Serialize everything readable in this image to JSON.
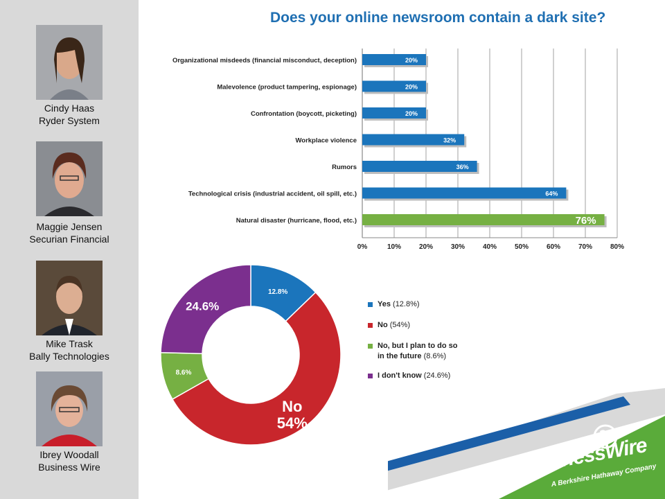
{
  "title": "Does your online newsroom contain a dark site?",
  "people": [
    {
      "name": "Cindy Haas",
      "org": "Ryder System"
    },
    {
      "name": "Maggie Jensen",
      "org": "Securian Financial"
    },
    {
      "name": "Mike Trask",
      "org": "Bally Technologies"
    },
    {
      "name": "Ibrey Woodall",
      "org": "Business Wire"
    }
  ],
  "colors": {
    "blue": "#1b75bc",
    "green": "#76b043",
    "red": "#c8262c",
    "purple": "#7b2f8e",
    "title": "#1f6fb2",
    "footer_green": "#5aab3a",
    "footer_blue": "#1b5fa8"
  },
  "chart_data": [
    {
      "type": "bar",
      "orientation": "horizontal",
      "categories": [
        "Organizational misdeeds (financial misconduct, deception)",
        "Malevolence (product tampering, espionage)",
        "Confrontation (boycott, picketing)",
        "Workplace violence",
        "Rumors",
        "Technological crisis (industrial accident, oil spill, etc.)",
        "Natural disaster (hurricane, flood, etc.)"
      ],
      "values": [
        20,
        20,
        20,
        32,
        36,
        64,
        76
      ],
      "value_labels": [
        "20%",
        "20%",
        "20%",
        "32%",
        "36%",
        "64%",
        "76%"
      ],
      "highlight_index": 6,
      "xlim": [
        0,
        80
      ],
      "xticks": [
        "0%",
        "10%",
        "20%",
        "30%",
        "40%",
        "50%",
        "60%",
        "70%",
        "80%"
      ],
      "grid": true
    },
    {
      "type": "pie",
      "style": "donut",
      "slices": [
        {
          "label": "Yes",
          "value": 12.8,
          "color": "#1b75bc",
          "slice_label": "12.8%"
        },
        {
          "label": "No",
          "value": 54,
          "color": "#c8262c",
          "slice_label": "54%"
        },
        {
          "label": "No, but I plan to do so in the future",
          "value": 8.6,
          "color": "#76b043",
          "slice_label": "8.6%"
        },
        {
          "label": "I don't know",
          "value": 24.6,
          "color": "#7b2f8e",
          "slice_label": "24.6%"
        }
      ],
      "center_callout": "No",
      "legend": [
        {
          "main": "Yes",
          "pct": "(12.8%)"
        },
        {
          "main": "No",
          "pct": "(54%)"
        },
        {
          "main": "No, but I plan to do so",
          "main2": "in the future",
          "pct": "(8.6%)"
        },
        {
          "main": "I don't know",
          "pct": "(24.6%)"
        }
      ],
      "legend_position": "right"
    }
  ],
  "logo": {
    "main": "BusinessWire",
    "sub": "A Berkshire Hathaway Company"
  }
}
